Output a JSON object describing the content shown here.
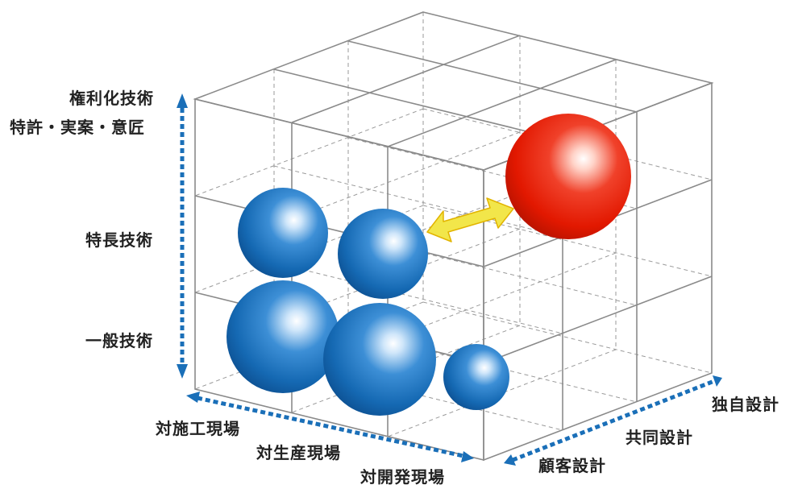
{
  "vertical_axis": {
    "labels": {
      "top_line1": "権利化技術",
      "top_line2": "特許・実案・意匠",
      "middle": "特長技術",
      "bottom": "一般技術"
    }
  },
  "front_axis": {
    "labels": [
      "対施工現場",
      "対生産現場",
      "対開発現場"
    ]
  },
  "side_axis": {
    "labels": [
      "顧客設計",
      "共同設計",
      "独自設計"
    ]
  },
  "colors": {
    "axis_arrow": "#1a6fb8",
    "grid_line": "#8a8a8a",
    "blue_sphere": "#1569b3",
    "red_sphere": "#e21800",
    "link_arrow": "#f2e64a"
  },
  "spheres": [
    {
      "color": "blue",
      "level": "特長技術",
      "field": "対施工現場"
    },
    {
      "color": "blue",
      "level": "特長技術",
      "field": "対生産現場"
    },
    {
      "color": "blue",
      "level": "一般技術",
      "field": "対施工現場"
    },
    {
      "color": "blue",
      "level": "一般技術",
      "field": "対生産現場"
    },
    {
      "color": "blue",
      "level": "一般技術",
      "field": "対開発現場"
    },
    {
      "color": "red",
      "level": "権利化技術",
      "field": "独自設計"
    }
  ],
  "icons": {
    "link_arrow": "double-headed-arrow-icon"
  }
}
